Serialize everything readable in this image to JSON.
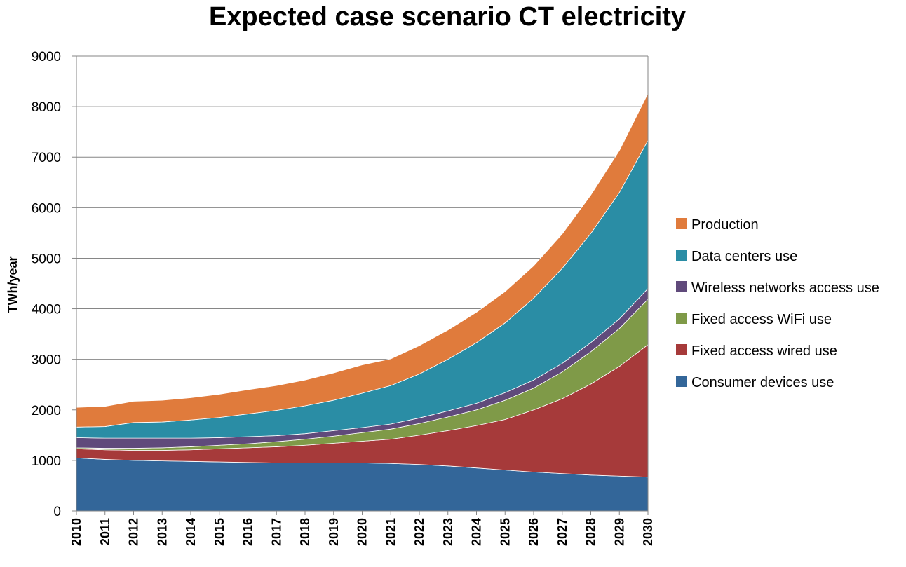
{
  "chart_data": {
    "type": "area",
    "stacked": true,
    "title": "Expected case scenario CT electricity",
    "xlabel": "",
    "ylabel": "TWh/year",
    "ylim": [
      0,
      9000
    ],
    "yticks": [
      "0",
      "1000",
      "2000",
      "3000",
      "4000",
      "5000",
      "6000",
      "7000",
      "8000",
      "9000"
    ],
    "grid": "horizontal",
    "legend_position": "right",
    "categories": [
      "2010",
      "2011",
      "2012",
      "2013",
      "2014",
      "2015",
      "2016",
      "2017",
      "2018",
      "2019",
      "2020",
      "2021",
      "2022",
      "2023",
      "2024",
      "2025",
      "2026",
      "2027",
      "2028",
      "2029",
      "2030"
    ],
    "series": [
      {
        "name": "Consumer devices use",
        "color": "#336699",
        "values": [
          1050,
          1020,
          1000,
          990,
          980,
          970,
          960,
          950,
          950,
          950,
          950,
          940,
          920,
          890,
          850,
          810,
          770,
          740,
          710,
          690,
          670
        ]
      },
      {
        "name": "Fixed access wired use",
        "color": "#A63A3A",
        "values": [
          180,
          190,
          200,
          210,
          230,
          260,
          290,
          320,
          350,
          390,
          430,
          480,
          580,
          700,
          840,
          1000,
          1230,
          1480,
          1800,
          2170,
          2620
        ]
      },
      {
        "name": "Fixed access WiFi use",
        "color": "#7F9A48",
        "values": [
          20,
          30,
          40,
          50,
          60,
          70,
          80,
          100,
          120,
          140,
          170,
          200,
          230,
          270,
          310,
          380,
          430,
          530,
          640,
          750,
          900
        ]
      },
      {
        "name": "Wireless networks access use",
        "color": "#604A7B",
        "values": [
          200,
          200,
          200,
          190,
          170,
          150,
          140,
          120,
          110,
          110,
          100,
          100,
          110,
          120,
          130,
          150,
          160,
          170,
          180,
          190,
          210
        ]
      },
      {
        "name": "Data centers use",
        "color": "#2A8DA5",
        "values": [
          210,
          230,
          310,
          320,
          360,
          400,
          450,
          500,
          550,
          600,
          680,
          760,
          870,
          1020,
          1200,
          1380,
          1620,
          1880,
          2160,
          2500,
          2930
        ]
      },
      {
        "name": "Production",
        "color": "#E07B3C",
        "values": [
          390,
          400,
          420,
          430,
          440,
          460,
          480,
          490,
          510,
          540,
          560,
          530,
          560,
          580,
          600,
          620,
          640,
          680,
          760,
          830,
          930
        ]
      }
    ]
  }
}
